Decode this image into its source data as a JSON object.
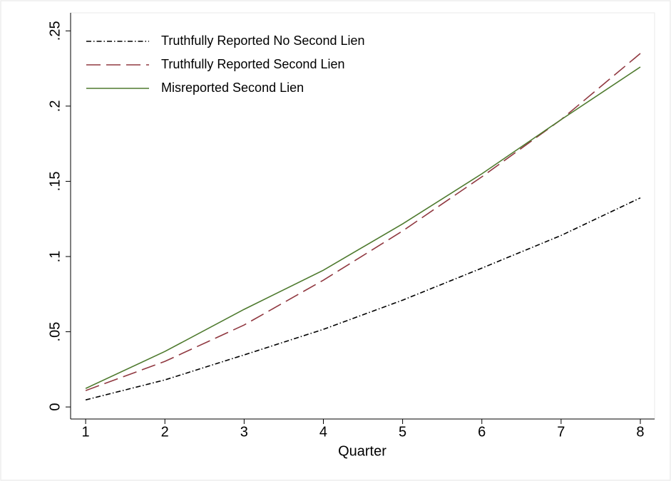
{
  "chart_data": {
    "type": "line",
    "x_label": "Quarter",
    "x": [
      1,
      2,
      3,
      4,
      5,
      6,
      7,
      8
    ],
    "series": [
      {
        "name": "Truthfully Reported No Second Lien",
        "color": "#000000",
        "style": "dash-dot",
        "values": [
          0.0047,
          0.018,
          0.0346,
          0.0516,
          0.071,
          0.0923,
          0.114,
          0.139
        ]
      },
      {
        "name": "Truthfully Reported Second Lien",
        "color": "#903840",
        "style": "long-dash",
        "values": [
          0.0109,
          0.0303,
          0.0545,
          0.0843,
          0.117,
          0.153,
          0.191,
          0.235
        ]
      },
      {
        "name": "Misreported Second Lien",
        "color": "#4e7a2e",
        "style": "solid",
        "values": [
          0.0123,
          0.0369,
          0.0649,
          0.0909,
          0.1217,
          0.155,
          0.191,
          0.226
        ]
      }
    ],
    "xlim": [
      0.81,
      8.18
    ],
    "xticks": [
      1,
      2,
      3,
      4,
      5,
      6,
      7,
      8
    ],
    "ylim": [
      -0.008,
      0.262
    ],
    "yticks": [
      0,
      {
        "value": 0.05,
        "label": ".05"
      },
      {
        "value": 0.1,
        "label": ".1"
      },
      {
        "value": 0.15,
        "label": ".15"
      },
      {
        "value": 0.2,
        "label": ".2"
      },
      {
        "value": 0.25,
        "label": ".25"
      }
    ],
    "legend": "top-left"
  }
}
